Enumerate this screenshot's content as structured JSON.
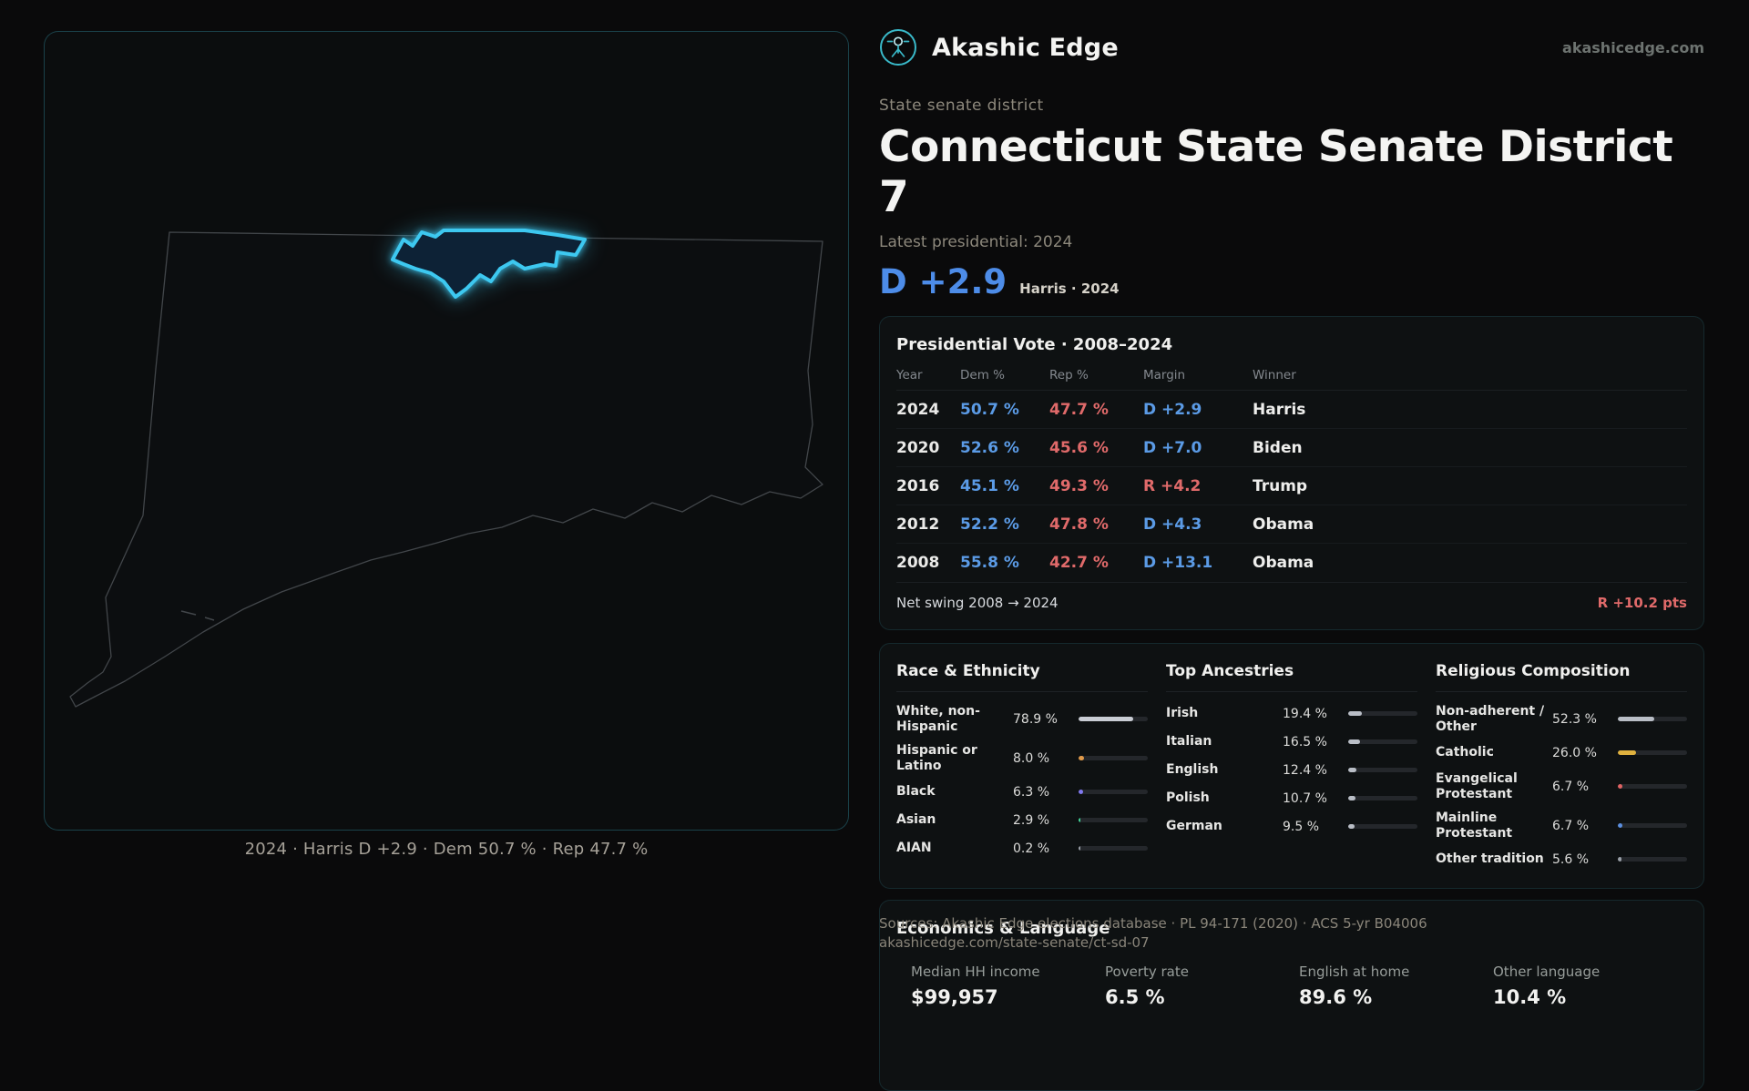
{
  "header": {
    "brand": "Akashic Edge",
    "domain": "akashicedge.com"
  },
  "map": {
    "caption": "2024 · Harris D +2.9 · Dem 50.7 % · Rep 47.7 %"
  },
  "profile": {
    "eyebrow": "State senate district",
    "title": "Connecticut State Senate District 7",
    "latest_label": "Latest presidential: 2024",
    "headline_margin": "D +2.9",
    "headline_note": "Harris · 2024"
  },
  "vote_table": {
    "title": "Presidential Vote · 2008–2024",
    "columns": {
      "year": "Year",
      "dem": "Dem %",
      "rep": "Rep %",
      "margin": "Margin",
      "winner": "Winner"
    },
    "rows": [
      {
        "year": "2024",
        "dem": "50.7 %",
        "rep": "47.7 %",
        "margin": "D +2.9",
        "party": "D",
        "winner": "Harris"
      },
      {
        "year": "2020",
        "dem": "52.6 %",
        "rep": "45.6 %",
        "margin": "D +7.0",
        "party": "D",
        "winner": "Biden"
      },
      {
        "year": "2016",
        "dem": "45.1 %",
        "rep": "49.3 %",
        "margin": "R +4.2",
        "party": "R",
        "winner": "Trump"
      },
      {
        "year": "2012",
        "dem": "52.2 %",
        "rep": "47.8 %",
        "margin": "D +4.3",
        "party": "D",
        "winner": "Obama"
      },
      {
        "year": "2008",
        "dem": "55.8 %",
        "rep": "42.7 %",
        "margin": "D +13.1",
        "party": "D",
        "winner": "Obama"
      }
    ],
    "net_swing_label": "Net swing 2008 → 2024",
    "net_swing_value": "R +10.2 pts"
  },
  "demographics": {
    "race": {
      "title": "Race & Ethnicity",
      "rows": [
        {
          "label": "White, non-Hispanic",
          "value": "78.9 %",
          "pct": 78.9,
          "color": "#c9cdd4"
        },
        {
          "label": "Hispanic or Latino",
          "value": "8.0 %",
          "pct": 8.0,
          "color": "#e09a4a"
        },
        {
          "label": "Black",
          "value": "6.3 %",
          "pct": 6.3,
          "color": "#8079f0"
        },
        {
          "label": "Asian",
          "value": "2.9 %",
          "pct": 2.9,
          "color": "#43d69a"
        },
        {
          "label": "AIAN",
          "value": "0.2 %",
          "pct": 0.2,
          "color": "#9aa0a8"
        }
      ]
    },
    "ancestries": {
      "title": "Top Ancestries",
      "rows": [
        {
          "label": "Irish",
          "value": "19.4 %",
          "pct": 19.4,
          "color": "#b9bec6"
        },
        {
          "label": "Italian",
          "value": "16.5 %",
          "pct": 16.5,
          "color": "#b9bec6"
        },
        {
          "label": "English",
          "value": "12.4 %",
          "pct": 12.4,
          "color": "#b9bec6"
        },
        {
          "label": "Polish",
          "value": "10.7 %",
          "pct": 10.7,
          "color": "#b9bec6"
        },
        {
          "label": "German",
          "value": "9.5 %",
          "pct": 9.5,
          "color": "#b9bec6"
        }
      ]
    },
    "religion": {
      "title": "Religious Composition",
      "rows": [
        {
          "label": "Non-adherent / Other",
          "value": "52.3 %",
          "pct": 52.3,
          "color": "#b9bec6"
        },
        {
          "label": "Catholic",
          "value": "26.0 %",
          "pct": 26.0,
          "color": "#e0b23f"
        },
        {
          "label": "Evangelical Protestant",
          "value": "6.7 %",
          "pct": 6.7,
          "color": "#e06363"
        },
        {
          "label": "Mainline Protestant",
          "value": "6.7 %",
          "pct": 6.7,
          "color": "#5b8fe0"
        },
        {
          "label": "Other tradition",
          "value": "5.6 %",
          "pct": 5.6,
          "color": "#9aa0a8"
        }
      ]
    }
  },
  "economics": {
    "title": "Economics & Language",
    "stats": [
      {
        "label": "Median HH income",
        "value": "$99,957"
      },
      {
        "label": "Poverty rate",
        "value": "6.5 %"
      },
      {
        "label": "English at home",
        "value": "89.6 %"
      },
      {
        "label": "Other language",
        "value": "10.4 %"
      }
    ]
  },
  "footer": {
    "sources": "Sources: Akashic Edge elections database · PL 94-171 (2020) · ACS 5-yr B04006",
    "permalink": "akashicedge.com/state-senate/ct-sd-07"
  },
  "colors": {
    "dem": "#5b9be6",
    "rep": "#e06a6a",
    "accent": "#3dc8f0"
  }
}
